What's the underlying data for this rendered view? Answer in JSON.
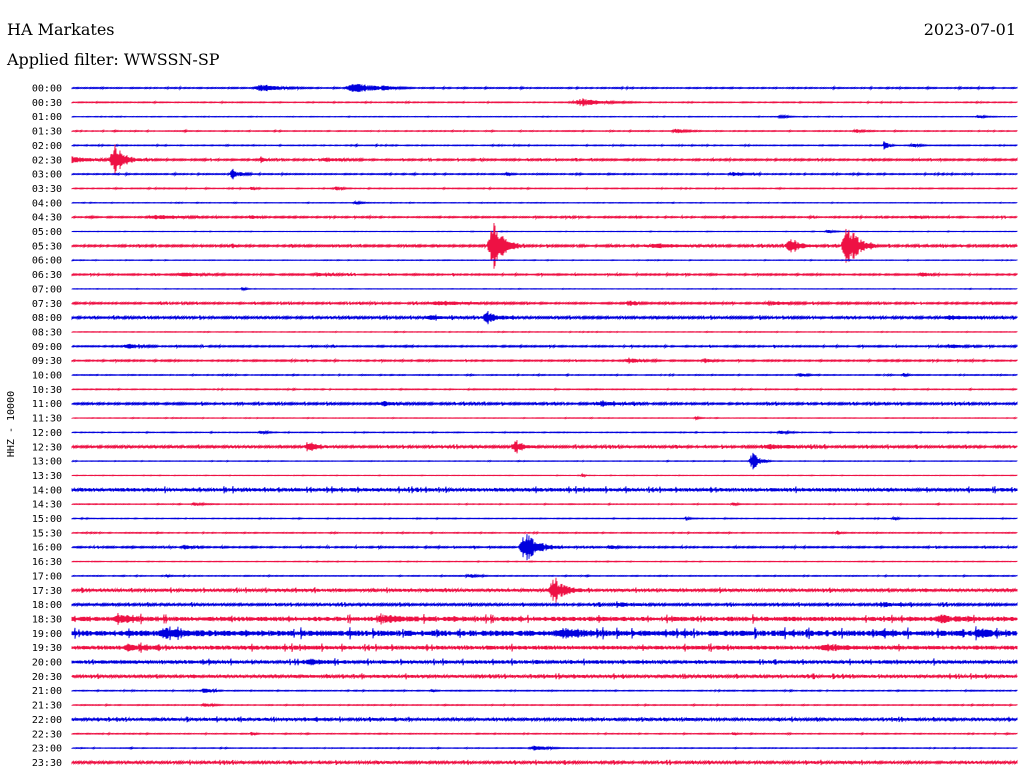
{
  "header": {
    "station": "HA Markates",
    "date": "2023-07-01",
    "filter": "Applied filter: WWSSN-SP"
  },
  "chart_data": {
    "type": "line",
    "channel_label": "HHZ - 10000",
    "colors": {
      "even_hour": "#0000dd",
      "half_hour": "#ee1144"
    },
    "x_fraction_range": [
      0,
      1
    ],
    "rows": [
      {
        "label": "00:00",
        "color": "blue",
        "noise": 0.4,
        "events": [
          [
            0.2,
            4,
            0.05
          ],
          [
            0.3,
            5,
            0.06
          ],
          [
            0.33,
            2,
            0.02
          ]
        ]
      },
      {
        "label": "00:30",
        "color": "red",
        "noise": 0.3,
        "events": [
          [
            0.54,
            4,
            0.06
          ]
        ]
      },
      {
        "label": "01:00",
        "color": "blue",
        "noise": 0.2,
        "events": [
          [
            0.75,
            1.5,
            0.02
          ],
          [
            0.96,
            1.5,
            0.02
          ]
        ]
      },
      {
        "label": "01:30",
        "color": "red",
        "noise": 0.3,
        "events": [
          [
            0.64,
            2,
            0.03
          ],
          [
            0.83,
            2,
            0.02
          ]
        ]
      },
      {
        "label": "02:00",
        "color": "blue",
        "noise": 0.3,
        "events": [
          [
            0.86,
            6,
            0.01
          ],
          [
            0.89,
            2,
            0.02
          ]
        ]
      },
      {
        "label": "02:30",
        "color": "red",
        "noise": 0.6,
        "events": [
          [
            0.045,
            16,
            0.03
          ],
          [
            0.0,
            3,
            0.06
          ],
          [
            0.2,
            3,
            0.01
          ],
          [
            0.27,
            2,
            0.04
          ]
        ]
      },
      {
        "label": "03:00",
        "color": "blue",
        "noise": 0.4,
        "events": [
          [
            0.17,
            5,
            0.02
          ],
          [
            0.46,
            2,
            0.01
          ],
          [
            0.7,
            2,
            0.03
          ]
        ]
      },
      {
        "label": "03:30",
        "color": "red",
        "noise": 0.3,
        "events": [
          [
            0.28,
            4,
            0.01
          ],
          [
            0.19,
            2,
            0.01
          ]
        ]
      },
      {
        "label": "04:00",
        "color": "blue",
        "noise": 0.2,
        "events": [
          [
            0.3,
            1.5,
            0.02
          ]
        ]
      },
      {
        "label": "04:30",
        "color": "red",
        "noise": 0.5,
        "events": [
          [
            0.09,
            2,
            0.07
          ],
          [
            0.19,
            2,
            0.02
          ],
          [
            0.89,
            2,
            0.02
          ]
        ]
      },
      {
        "label": "05:00",
        "color": "blue",
        "noise": 0.15,
        "events": [
          [
            0.8,
            1.5,
            0.02
          ]
        ]
      },
      {
        "label": "05:30",
        "color": "red",
        "noise": 0.7,
        "events": [
          [
            0.445,
            28,
            0.03
          ],
          [
            0.82,
            28,
            0.03
          ],
          [
            0.76,
            7,
            0.03
          ],
          [
            0.62,
            2,
            0.07
          ],
          [
            0.17,
            2,
            0.01
          ]
        ]
      },
      {
        "label": "06:00",
        "color": "blue",
        "noise": 0.2,
        "events": []
      },
      {
        "label": "06:30",
        "color": "red",
        "noise": 0.5,
        "events": [
          [
            0.12,
            2,
            0.06
          ],
          [
            0.26,
            2,
            0.04
          ],
          [
            0.9,
            2,
            0.02
          ]
        ]
      },
      {
        "label": "07:00",
        "color": "blue",
        "noise": 0.15,
        "events": [
          [
            0.18,
            2,
            0.01
          ]
        ]
      },
      {
        "label": "07:30",
        "color": "red",
        "noise": 0.6,
        "events": [
          [
            0.39,
            2,
            0.08
          ],
          [
            0.59,
            3,
            0.02
          ],
          [
            0.74,
            2,
            0.04
          ]
        ]
      },
      {
        "label": "08:00",
        "color": "blue",
        "noise": 0.8,
        "events": [
          [
            0.44,
            6,
            0.03
          ],
          [
            0.38,
            2,
            0.04
          ],
          [
            0.93,
            2,
            0.05
          ]
        ]
      },
      {
        "label": "08:30",
        "color": "red",
        "noise": 0.2,
        "events": []
      },
      {
        "label": "09:00",
        "color": "blue",
        "noise": 0.5,
        "events": [
          [
            0.06,
            3,
            0.03
          ],
          [
            0.93,
            2,
            0.03
          ]
        ]
      },
      {
        "label": "09:30",
        "color": "red",
        "noise": 0.5,
        "events": [
          [
            0.59,
            3,
            0.03
          ],
          [
            0.67,
            2,
            0.02
          ]
        ]
      },
      {
        "label": "10:00",
        "color": "blue",
        "noise": 0.3,
        "events": [
          [
            0.77,
            2,
            0.02
          ],
          [
            0.88,
            2,
            0.01
          ]
        ]
      },
      {
        "label": "10:30",
        "color": "red",
        "noise": 0.3,
        "events": []
      },
      {
        "label": "11:00",
        "color": "blue",
        "noise": 0.7,
        "events": [
          [
            0.33,
            2,
            0.04
          ],
          [
            0.56,
            2,
            0.05
          ]
        ]
      },
      {
        "label": "11:30",
        "color": "red",
        "noise": 0.2,
        "events": [
          [
            0.66,
            1.5,
            0.01
          ]
        ]
      },
      {
        "label": "12:00",
        "color": "blue",
        "noise": 0.25,
        "events": [
          [
            0.2,
            2,
            0.02
          ],
          [
            0.75,
            2,
            0.02
          ]
        ]
      },
      {
        "label": "12:30",
        "color": "red",
        "noise": 0.8,
        "events": [
          [
            0.25,
            6,
            0.02
          ],
          [
            0.47,
            7,
            0.02
          ],
          [
            0.74,
            2,
            0.06
          ]
        ]
      },
      {
        "label": "13:00",
        "color": "blue",
        "noise": 0.2,
        "events": [
          [
            0.72,
            10,
            0.02
          ]
        ]
      },
      {
        "label": "13:30",
        "color": "red",
        "noise": 0.15,
        "events": [
          [
            0.54,
            4,
            0.005
          ]
        ]
      },
      {
        "label": "14:00",
        "color": "blue",
        "noise": 1.2,
        "events": []
      },
      {
        "label": "14:30",
        "color": "red",
        "noise": 0.25,
        "events": [
          [
            0.13,
            2,
            0.02
          ],
          [
            0.7,
            2,
            0.01
          ]
        ]
      },
      {
        "label": "15:00",
        "color": "blue",
        "noise": 0.25,
        "events": [
          [
            0.65,
            1.5,
            0.01
          ],
          [
            0.87,
            2,
            0.01
          ]
        ]
      },
      {
        "label": "15:30",
        "color": "red",
        "noise": 0.3,
        "events": [
          [
            0.81,
            2,
            0.01
          ]
        ]
      },
      {
        "label": "16:00",
        "color": "blue",
        "noise": 0.5,
        "events": [
          [
            0.48,
            15,
            0.04
          ],
          [
            0.12,
            2,
            0.02
          ],
          [
            0.57,
            2,
            0.02
          ]
        ]
      },
      {
        "label": "16:30",
        "color": "red",
        "noise": 0.2,
        "events": []
      },
      {
        "label": "17:00",
        "color": "blue",
        "noise": 0.3,
        "events": [
          [
            0.42,
            2,
            0.02
          ],
          [
            0.1,
            1.5,
            0.01
          ]
        ]
      },
      {
        "label": "17:30",
        "color": "red",
        "noise": 1.0,
        "events": [
          [
            0.51,
            14,
            0.03
          ]
        ]
      },
      {
        "label": "18:00",
        "color": "blue",
        "noise": 0.8,
        "events": [
          [
            0.58,
            2,
            0.04
          ],
          [
            0.86,
            2,
            0.04
          ]
        ]
      },
      {
        "label": "18:30",
        "color": "red",
        "noise": 1.6,
        "events": [
          [
            0.05,
            3,
            0.05
          ],
          [
            0.33,
            3,
            0.05
          ],
          [
            0.92,
            3,
            0.05
          ]
        ]
      },
      {
        "label": "19:00",
        "color": "blue",
        "noise": 2.0,
        "events": [
          [
            0.1,
            4,
            0.05
          ],
          [
            0.96,
            4,
            0.03
          ],
          [
            0.52,
            3,
            0.06
          ]
        ]
      },
      {
        "label": "19:30",
        "color": "red",
        "noise": 1.4,
        "events": [
          [
            0.06,
            3,
            0.04
          ],
          [
            0.8,
            3,
            0.05
          ]
        ]
      },
      {
        "label": "20:00",
        "color": "blue",
        "noise": 1.2,
        "events": [
          [
            0.25,
            2,
            0.05
          ]
        ]
      },
      {
        "label": "20:30",
        "color": "red",
        "noise": 1.0,
        "events": []
      },
      {
        "label": "21:00",
        "color": "blue",
        "noise": 0.3,
        "events": [
          [
            0.14,
            3,
            0.02
          ],
          [
            0.38,
            1.5,
            0.01
          ]
        ]
      },
      {
        "label": "21:30",
        "color": "red",
        "noise": 0.3,
        "events": [
          [
            0.14,
            2,
            0.02
          ]
        ]
      },
      {
        "label": "22:00",
        "color": "blue",
        "noise": 1.0,
        "events": []
      },
      {
        "label": "22:30",
        "color": "red",
        "noise": 0.3,
        "events": [
          [
            0.19,
            2,
            0.01
          ],
          [
            0.7,
            2,
            0.01
          ]
        ]
      },
      {
        "label": "23:00",
        "color": "blue",
        "noise": 0.25,
        "events": [
          [
            0.49,
            3,
            0.03
          ]
        ]
      },
      {
        "label": "23:30",
        "color": "red",
        "noise": 0.9,
        "events": []
      }
    ]
  }
}
